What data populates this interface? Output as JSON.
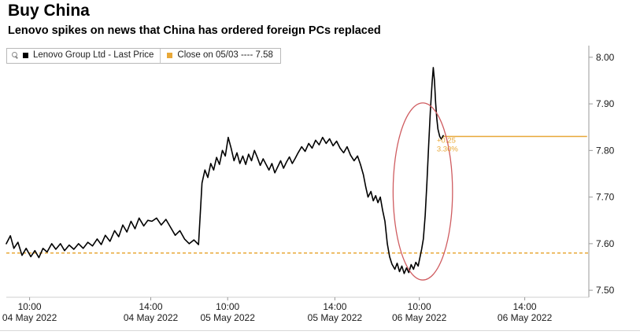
{
  "header": {
    "title": "Buy China",
    "subtitle": "Lenovo spikes on news that China has ordered foreign PCs replaced"
  },
  "legend": {
    "items": [
      {
        "label": "Lenovo Group Ltd - Last Price",
        "color": "#000000"
      },
      {
        "label": "Close on 05/03 ---- 7.58",
        "color": "#e8a838"
      }
    ]
  },
  "chart_data": {
    "type": "line",
    "title": "Buy China",
    "xlabel": "",
    "ylabel": "",
    "colors": {
      "price_line": "#000000",
      "reference": "#e8a838",
      "highlight_ellipse": "#cf5c60"
    },
    "y_axis": {
      "side": "right",
      "min": 7.485,
      "max": 8.025,
      "ticks": [
        7.5,
        7.6,
        7.7,
        7.8,
        7.9,
        8.0
      ],
      "tick_labels": [
        "7.50",
        "7.60",
        "7.70",
        "7.80",
        "7.90",
        "8.00"
      ]
    },
    "x_axis": {
      "ticks": [
        {
          "t": 0.04,
          "time": "10:00",
          "date": "04 May 2022"
        },
        {
          "t": 0.248,
          "time": "14:00",
          "date": "04 May 2022"
        },
        {
          "t": 0.38,
          "time": "10:00",
          "date": "05 May 2022"
        },
        {
          "t": 0.564,
          "time": "14:00",
          "date": "05 May 2022"
        },
        {
          "t": 0.709,
          "time": "10:00",
          "date": "06 May 2022"
        },
        {
          "t": 0.89,
          "time": "14:00",
          "date": "06 May 2022"
        }
      ]
    },
    "series": [
      {
        "name": "Lenovo Group Ltd - Last Price",
        "color": "#000000",
        "points": [
          [
            0.0,
            7.6
          ],
          [
            0.007,
            7.617
          ],
          [
            0.013,
            7.59
          ],
          [
            0.02,
            7.603
          ],
          [
            0.027,
            7.575
          ],
          [
            0.034,
            7.59
          ],
          [
            0.042,
            7.572
          ],
          [
            0.049,
            7.585
          ],
          [
            0.056,
            7.57
          ],
          [
            0.063,
            7.59
          ],
          [
            0.07,
            7.582
          ],
          [
            0.078,
            7.6
          ],
          [
            0.085,
            7.588
          ],
          [
            0.093,
            7.6
          ],
          [
            0.1,
            7.585
          ],
          [
            0.108,
            7.597
          ],
          [
            0.116,
            7.588
          ],
          [
            0.124,
            7.6
          ],
          [
            0.132,
            7.59
          ],
          [
            0.14,
            7.603
          ],
          [
            0.148,
            7.595
          ],
          [
            0.156,
            7.61
          ],
          [
            0.163,
            7.598
          ],
          [
            0.17,
            7.618
          ],
          [
            0.178,
            7.605
          ],
          [
            0.186,
            7.628
          ],
          [
            0.193,
            7.615
          ],
          [
            0.2,
            7.64
          ],
          [
            0.207,
            7.625
          ],
          [
            0.214,
            7.648
          ],
          [
            0.221,
            7.632
          ],
          [
            0.228,
            7.655
          ],
          [
            0.236,
            7.638
          ],
          [
            0.243,
            7.65
          ],
          [
            0.25,
            7.648
          ],
          [
            0.258,
            7.655
          ],
          [
            0.266,
            7.64
          ],
          [
            0.274,
            7.652
          ],
          [
            0.282,
            7.635
          ],
          [
            0.29,
            7.618
          ],
          [
            0.298,
            7.628
          ],
          [
            0.306,
            7.61
          ],
          [
            0.314,
            7.6
          ],
          [
            0.322,
            7.608
          ],
          [
            0.33,
            7.598
          ],
          [
            0.336,
            7.73
          ],
          [
            0.341,
            7.758
          ],
          [
            0.346,
            7.742
          ],
          [
            0.351,
            7.772
          ],
          [
            0.356,
            7.758
          ],
          [
            0.361,
            7.785
          ],
          [
            0.366,
            7.77
          ],
          [
            0.371,
            7.8
          ],
          [
            0.376,
            7.788
          ],
          [
            0.381,
            7.828
          ],
          [
            0.386,
            7.805
          ],
          [
            0.391,
            7.778
          ],
          [
            0.396,
            7.795
          ],
          [
            0.401,
            7.772
          ],
          [
            0.406,
            7.788
          ],
          [
            0.411,
            7.77
          ],
          [
            0.416,
            7.792
          ],
          [
            0.421,
            7.778
          ],
          [
            0.426,
            7.8
          ],
          [
            0.431,
            7.785
          ],
          [
            0.436,
            7.768
          ],
          [
            0.441,
            7.782
          ],
          [
            0.446,
            7.77
          ],
          [
            0.451,
            7.758
          ],
          [
            0.456,
            7.772
          ],
          [
            0.461,
            7.752
          ],
          [
            0.466,
            7.765
          ],
          [
            0.471,
            7.778
          ],
          [
            0.476,
            7.762
          ],
          [
            0.481,
            7.775
          ],
          [
            0.486,
            7.786
          ],
          [
            0.491,
            7.772
          ],
          [
            0.496,
            7.783
          ],
          [
            0.501,
            7.795
          ],
          [
            0.507,
            7.808
          ],
          [
            0.513,
            7.798
          ],
          [
            0.519,
            7.815
          ],
          [
            0.525,
            7.805
          ],
          [
            0.531,
            7.822
          ],
          [
            0.537,
            7.812
          ],
          [
            0.543,
            7.828
          ],
          [
            0.549,
            7.815
          ],
          [
            0.555,
            7.825
          ],
          [
            0.561,
            7.81
          ],
          [
            0.567,
            7.82
          ],
          [
            0.573,
            7.805
          ],
          [
            0.579,
            7.795
          ],
          [
            0.585,
            7.808
          ],
          [
            0.591,
            7.79
          ],
          [
            0.597,
            7.778
          ],
          [
            0.603,
            7.788
          ],
          [
            0.608,
            7.77
          ],
          [
            0.613,
            7.748
          ],
          [
            0.617,
            7.722
          ],
          [
            0.621,
            7.7
          ],
          [
            0.626,
            7.712
          ],
          [
            0.63,
            7.692
          ],
          [
            0.634,
            7.703
          ],
          [
            0.638,
            7.688
          ],
          [
            0.642,
            7.7
          ],
          [
            0.646,
            7.672
          ],
          [
            0.65,
            7.648
          ],
          [
            0.654,
            7.6
          ],
          [
            0.658,
            7.572
          ],
          [
            0.662,
            7.556
          ],
          [
            0.667,
            7.545
          ],
          [
            0.671,
            7.558
          ],
          [
            0.675,
            7.54
          ],
          [
            0.679,
            7.552
          ],
          [
            0.683,
            7.536
          ],
          [
            0.687,
            7.548
          ],
          [
            0.691,
            7.538
          ],
          [
            0.695,
            7.555
          ],
          [
            0.699,
            7.545
          ],
          [
            0.703,
            7.56
          ],
          [
            0.707,
            7.552
          ],
          [
            0.71,
            7.57
          ],
          [
            0.713,
            7.588
          ],
          [
            0.716,
            7.61
          ],
          [
            0.719,
            7.66
          ],
          [
            0.722,
            7.73
          ],
          [
            0.725,
            7.81
          ],
          [
            0.728,
            7.885
          ],
          [
            0.731,
            7.945
          ],
          [
            0.733,
            7.978
          ],
          [
            0.735,
            7.95
          ],
          [
            0.737,
            7.902
          ],
          [
            0.739,
            7.868
          ],
          [
            0.741,
            7.846
          ],
          [
            0.744,
            7.83
          ],
          [
            0.747,
            7.824
          ],
          [
            0.75,
            7.832
          ]
        ]
      }
    ],
    "reference_lines": [
      {
        "label": "Close on 05/03",
        "value": 7.58,
        "style": "dashed",
        "color": "#e8a838",
        "from": 0.0,
        "to": 1.0
      },
      {
        "label": "Last price",
        "value": 7.83,
        "style": "solid",
        "color": "#e8a838",
        "from": 0.75,
        "to": 0.997
      }
    ],
    "annotation": {
      "lines": [
        "+0.25",
        "3.30%"
      ],
      "x": 0.739,
      "y": 7.822,
      "color": "#e8a838"
    },
    "ellipse": {
      "cx": 0.715,
      "cy": 7.712,
      "rx": 0.051,
      "ry": 0.19,
      "color": "#cf5c60"
    }
  }
}
